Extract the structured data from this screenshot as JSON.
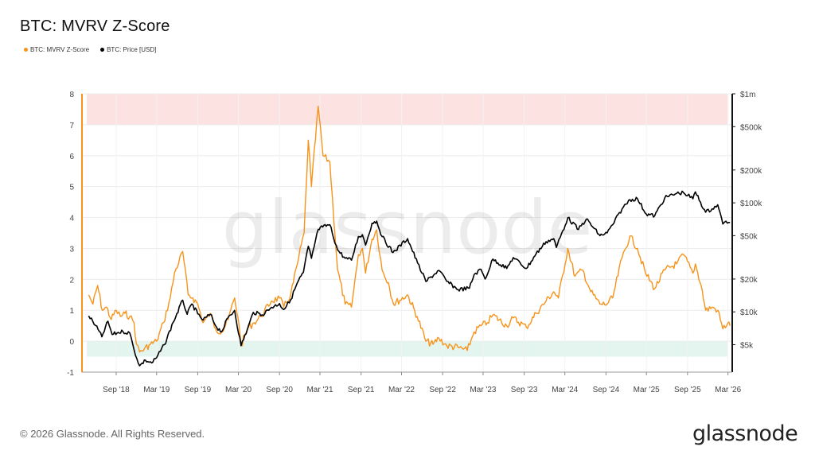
{
  "title": "BTC: MVRV Z-Score",
  "footer": {
    "copyright": "© 2026 Glassnode. All Rights Reserved.",
    "logo": "glassnode"
  },
  "watermark": "glassnode",
  "colors": {
    "zscore": "#f7931a",
    "price": "#000000",
    "red_zone": "#fde2e2",
    "green_zone": "#e3f5ee"
  },
  "chart_data": {
    "type": "line",
    "title": "BTC: MVRV Z-Score",
    "legend_position": "top-left",
    "grid": true,
    "series": [
      {
        "name": "BTC: MVRV Z-Score",
        "axis": "left",
        "color": "#f7931a",
        "points": [
          [
            "2018-05-01",
            1.5
          ],
          [
            "2018-05-20",
            1.2
          ],
          [
            "2018-06-10",
            1.8
          ],
          [
            "2018-07-01",
            1.0
          ],
          [
            "2018-07-20",
            1.1
          ],
          [
            "2018-08-10",
            0.7
          ],
          [
            "2018-09-01",
            1.0
          ],
          [
            "2018-09-20",
            0.8
          ],
          [
            "2018-10-10",
            0.9
          ],
          [
            "2018-11-01",
            0.8
          ],
          [
            "2018-11-20",
            0.6
          ],
          [
            "2018-12-01",
            -0.1
          ],
          [
            "2018-12-15",
            -0.35
          ],
          [
            "2019-01-05",
            -0.25
          ],
          [
            "2019-02-01",
            -0.1
          ],
          [
            "2019-03-01",
            0.0
          ],
          [
            "2019-04-01",
            0.6
          ],
          [
            "2019-05-01",
            1.4
          ],
          [
            "2019-05-20",
            2.2
          ],
          [
            "2019-06-26",
            2.9
          ],
          [
            "2019-07-20",
            1.5
          ],
          [
            "2019-08-10",
            1.4
          ],
          [
            "2019-09-01",
            1.2
          ],
          [
            "2019-09-25",
            0.6
          ],
          [
            "2019-10-27",
            0.9
          ],
          [
            "2019-11-20",
            0.4
          ],
          [
            "2019-12-18",
            0.3
          ],
          [
            "2020-01-15",
            0.7
          ],
          [
            "2020-02-13",
            1.4
          ],
          [
            "2020-03-01",
            0.7
          ],
          [
            "2020-03-13",
            -0.15
          ],
          [
            "2020-04-10",
            0.4
          ],
          [
            "2020-05-10",
            0.6
          ],
          [
            "2020-06-10",
            0.8
          ],
          [
            "2020-07-27",
            1.3
          ],
          [
            "2020-09-01",
            1.4
          ],
          [
            "2020-09-20",
            1.1
          ],
          [
            "2020-10-21",
            1.5
          ],
          [
            "2020-11-20",
            2.5
          ],
          [
            "2020-12-20",
            3.5
          ],
          [
            "2021-01-08",
            6.5
          ],
          [
            "2021-01-22",
            5.0
          ],
          [
            "2021-02-21",
            7.6
          ],
          [
            "2021-03-15",
            6.0
          ],
          [
            "2021-04-14",
            5.8
          ],
          [
            "2021-05-19",
            2.3
          ],
          [
            "2021-06-22",
            1.2
          ],
          [
            "2021-07-20",
            1.1
          ],
          [
            "2021-08-20",
            2.8
          ],
          [
            "2021-09-07",
            3.0
          ],
          [
            "2021-09-21",
            2.2
          ],
          [
            "2021-10-20",
            3.3
          ],
          [
            "2021-11-10",
            3.6
          ],
          [
            "2021-12-04",
            2.3
          ],
          [
            "2022-01-01",
            1.9
          ],
          [
            "2022-01-24",
            1.2
          ],
          [
            "2022-03-28",
            1.5
          ],
          [
            "2022-05-10",
            0.8
          ],
          [
            "2022-06-18",
            0.0
          ],
          [
            "2022-07-20",
            -0.1
          ],
          [
            "2022-08-15",
            0.1
          ],
          [
            "2022-09-20",
            -0.15
          ],
          [
            "2022-11-09",
            -0.2
          ],
          [
            "2022-12-20",
            -0.3
          ],
          [
            "2023-01-20",
            0.3
          ],
          [
            "2023-02-20",
            0.5
          ],
          [
            "2023-03-20",
            0.6
          ],
          [
            "2023-04-14",
            0.85
          ],
          [
            "2023-06-15",
            0.5
          ],
          [
            "2023-07-14",
            0.75
          ],
          [
            "2023-09-11",
            0.45
          ],
          [
            "2023-10-24",
            0.9
          ],
          [
            "2023-12-08",
            1.3
          ],
          [
            "2024-01-11",
            1.6
          ],
          [
            "2024-02-01",
            1.4
          ],
          [
            "2024-03-14",
            3.0
          ],
          [
            "2024-04-15",
            2.1
          ],
          [
            "2024-05-20",
            2.3
          ],
          [
            "2024-06-25",
            1.6
          ],
          [
            "2024-08-05",
            1.2
          ],
          [
            "2024-09-06",
            1.2
          ],
          [
            "2024-10-01",
            1.4
          ],
          [
            "2024-11-12",
            2.7
          ],
          [
            "2024-12-17",
            3.4
          ],
          [
            "2025-01-20",
            3.0
          ],
          [
            "2025-02-25",
            2.2
          ],
          [
            "2025-04-07",
            1.7
          ],
          [
            "2025-05-22",
            2.3
          ],
          [
            "2025-07-14",
            2.5
          ],
          [
            "2025-08-14",
            2.8
          ],
          [
            "2025-09-25",
            2.2
          ],
          [
            "2025-10-06",
            2.5
          ],
          [
            "2025-11-01",
            1.8
          ],
          [
            "2025-11-21",
            1.0
          ],
          [
            "2025-12-20",
            1.1
          ],
          [
            "2026-01-14",
            1.0
          ],
          [
            "2026-02-06",
            0.4
          ],
          [
            "2026-03-01",
            0.6
          ],
          [
            "2026-03-10",
            0.5
          ]
        ]
      },
      {
        "name": "BTC: Price [USD]",
        "axis": "right",
        "color": "#000000",
        "scale": "log",
        "points": [
          [
            "2018-05-01",
            9200
          ],
          [
            "2018-06-01",
            7500
          ],
          [
            "2018-06-29",
            5900
          ],
          [
            "2018-07-26",
            8200
          ],
          [
            "2018-08-14",
            6200
          ],
          [
            "2018-09-05",
            6400
          ],
          [
            "2018-10-01",
            6600
          ],
          [
            "2018-11-01",
            6400
          ],
          [
            "2018-11-20",
            4500
          ],
          [
            "2018-12-15",
            3200
          ],
          [
            "2019-01-10",
            3600
          ],
          [
            "2019-02-07",
            3400
          ],
          [
            "2019-03-01",
            3800
          ],
          [
            "2019-04-05",
            5000
          ],
          [
            "2019-05-14",
            8000
          ],
          [
            "2019-06-26",
            12800
          ],
          [
            "2019-07-16",
            9500
          ],
          [
            "2019-08-06",
            11800
          ],
          [
            "2019-09-01",
            9600
          ],
          [
            "2019-09-25",
            8400
          ],
          [
            "2019-10-27",
            9500
          ],
          [
            "2019-11-25",
            7200
          ],
          [
            "2019-12-18",
            6600
          ],
          [
            "2020-01-14",
            8800
          ],
          [
            "2020-02-13",
            10300
          ],
          [
            "2020-03-13",
            4900
          ],
          [
            "2020-04-10",
            6900
          ],
          [
            "2020-05-07",
            9900
          ],
          [
            "2020-06-15",
            9400
          ],
          [
            "2020-07-27",
            11000
          ],
          [
            "2020-09-01",
            11900
          ],
          [
            "2020-09-20",
            10500
          ],
          [
            "2020-10-21",
            12900
          ],
          [
            "2020-11-20",
            18500
          ],
          [
            "2020-12-17",
            23000
          ],
          [
            "2021-01-08",
            40000
          ],
          [
            "2021-01-22",
            31000
          ],
          [
            "2021-02-21",
            57000
          ],
          [
            "2021-03-13",
            60000
          ],
          [
            "2021-04-14",
            63000
          ],
          [
            "2021-05-19",
            37000
          ],
          [
            "2021-06-22",
            31000
          ],
          [
            "2021-07-20",
            29800
          ],
          [
            "2021-08-20",
            49000
          ],
          [
            "2021-09-07",
            51000
          ],
          [
            "2021-09-21",
            41000
          ],
          [
            "2021-10-20",
            65000
          ],
          [
            "2021-11-10",
            68000
          ],
          [
            "2021-12-04",
            49000
          ],
          [
            "2022-01-22",
            35000
          ],
          [
            "2022-03-28",
            47000
          ],
          [
            "2022-05-12",
            28000
          ],
          [
            "2022-06-18",
            19000
          ],
          [
            "2022-08-15",
            24000
          ],
          [
            "2022-09-20",
            19000
          ],
          [
            "2022-11-09",
            16000
          ],
          [
            "2022-12-30",
            16500
          ],
          [
            "2023-01-20",
            22000
          ],
          [
            "2023-02-20",
            24500
          ],
          [
            "2023-03-10",
            20000
          ],
          [
            "2023-04-14",
            30500
          ],
          [
            "2023-06-15",
            25000
          ],
          [
            "2023-07-14",
            31500
          ],
          [
            "2023-09-11",
            25000
          ],
          [
            "2023-10-24",
            34000
          ],
          [
            "2023-12-08",
            44000
          ],
          [
            "2024-01-11",
            47000
          ],
          [
            "2024-01-23",
            39000
          ],
          [
            "2024-03-14",
            73000
          ],
          [
            "2024-05-01",
            57000
          ],
          [
            "2024-06-05",
            71000
          ],
          [
            "2024-08-05",
            50000
          ],
          [
            "2024-09-06",
            53000
          ],
          [
            "2024-10-01",
            63000
          ],
          [
            "2024-11-12",
            88000
          ],
          [
            "2024-12-17",
            107000
          ],
          [
            "2025-01-20",
            109000
          ],
          [
            "2025-02-28",
            79000
          ],
          [
            "2025-04-07",
            76000
          ],
          [
            "2025-05-22",
            111000
          ],
          [
            "2025-07-14",
            122000
          ],
          [
            "2025-08-14",
            124000
          ],
          [
            "2025-09-25",
            109000
          ],
          [
            "2025-10-06",
            126000
          ],
          [
            "2025-11-21",
            82000
          ],
          [
            "2025-12-20",
            88000
          ],
          [
            "2026-01-14",
            96000
          ],
          [
            "2026-02-06",
            64000
          ],
          [
            "2026-02-20",
            68000
          ],
          [
            "2026-03-10",
            66000
          ]
        ]
      }
    ],
    "x_range": [
      "2018-04-01",
      "2026-03-20"
    ],
    "left_axis": {
      "ylim": [
        -1,
        8
      ],
      "ticks": [
        "-1",
        "0",
        "1",
        "2",
        "3",
        "4",
        "5",
        "6",
        "7",
        "8"
      ]
    },
    "right_axis": {
      "scale": "log",
      "ylim": [
        2800,
        1000000
      ],
      "ticks": [
        {
          "value": 5000,
          "label": "$5k"
        },
        {
          "value": 10000,
          "label": "$10k"
        },
        {
          "value": 20000,
          "label": "$20k"
        },
        {
          "value": 50000,
          "label": "$50k"
        },
        {
          "value": 100000,
          "label": "$100k"
        },
        {
          "value": 200000,
          "label": "$200k"
        },
        {
          "value": 500000,
          "label": "$500k"
        },
        {
          "value": 1000000,
          "label": "$1m"
        }
      ]
    },
    "x_ticks": [
      {
        "date": "2018-09-01",
        "label": "Sep '18"
      },
      {
        "date": "2019-03-01",
        "label": "Mar '19"
      },
      {
        "date": "2019-09-01",
        "label": "Sep '19"
      },
      {
        "date": "2020-03-01",
        "label": "Mar '20"
      },
      {
        "date": "2020-09-01",
        "label": "Sep '20"
      },
      {
        "date": "2021-03-01",
        "label": "Mar '21"
      },
      {
        "date": "2021-09-01",
        "label": "Sep '21"
      },
      {
        "date": "2022-03-01",
        "label": "Mar '22"
      },
      {
        "date": "2022-09-01",
        "label": "Sep '22"
      },
      {
        "date": "2023-03-01",
        "label": "Mar '23"
      },
      {
        "date": "2023-09-01",
        "label": "Sep '23"
      },
      {
        "date": "2024-03-01",
        "label": "Mar '24"
      },
      {
        "date": "2024-09-01",
        "label": "Sep '24"
      },
      {
        "date": "2025-03-01",
        "label": "Mar '25"
      },
      {
        "date": "2025-09-01",
        "label": "Sep '25"
      },
      {
        "date": "2026-03-01",
        "label": "Mar '26"
      }
    ],
    "bands": [
      {
        "zone": "red",
        "from": 7,
        "to": 8
      },
      {
        "zone": "green",
        "from": -0.5,
        "to": 0
      }
    ]
  }
}
